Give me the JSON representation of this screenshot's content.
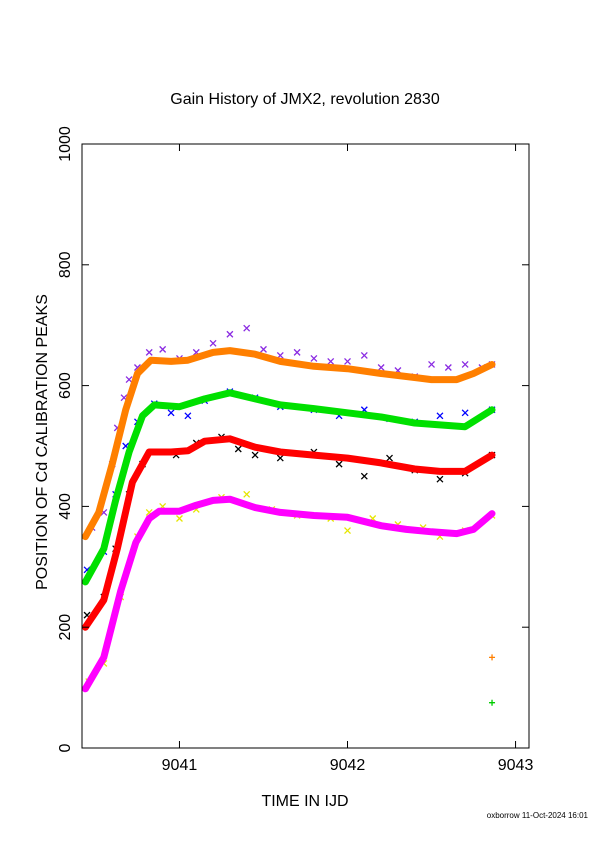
{
  "chart_data": {
    "type": "scatter",
    "title": "Gain History of JMX2, revolution 2830",
    "xlabel": "TIME IN IJD",
    "ylabel": "POSITION OF Cd CALIBRATION PEAKS",
    "xlim": [
      9040.42,
      9043.08
    ],
    "ylim": [
      0,
      1000
    ],
    "xticks": [
      9041,
      9042,
      9043
    ],
    "yticks": [
      0,
      200,
      400,
      600,
      800,
      1000
    ],
    "grid": false,
    "footer": "oxborrow 11-Oct-2024 16:01",
    "series": [
      {
        "color": "#8a2be2",
        "marker": "x",
        "points": [
          [
            9040.48,
            365
          ],
          [
            9040.55,
            390
          ],
          [
            9040.6,
            470
          ],
          [
            9040.63,
            530
          ],
          [
            9040.67,
            580
          ],
          [
            9040.7,
            610
          ],
          [
            9040.75,
            630
          ],
          [
            9040.82,
            655
          ],
          [
            9040.9,
            660
          ],
          [
            9041.0,
            645
          ],
          [
            9041.1,
            655
          ],
          [
            9041.2,
            670
          ],
          [
            9041.3,
            685
          ],
          [
            9041.4,
            695
          ],
          [
            9041.5,
            660
          ],
          [
            9041.6,
            650
          ],
          [
            9041.7,
            655
          ],
          [
            9041.8,
            645
          ],
          [
            9041.9,
            640
          ],
          [
            9042.0,
            640
          ],
          [
            9042.1,
            650
          ],
          [
            9042.2,
            630
          ],
          [
            9042.3,
            625
          ],
          [
            9042.4,
            615
          ],
          [
            9042.5,
            635
          ],
          [
            9042.6,
            630
          ],
          [
            9042.7,
            635
          ],
          [
            9042.8,
            630
          ],
          [
            9042.86,
            635
          ]
        ]
      },
      {
        "color": "#ff7f00",
        "marker": "line",
        "points": [
          [
            9040.44,
            350
          ],
          [
            9040.52,
            390
          ],
          [
            9040.6,
            470
          ],
          [
            9040.68,
            560
          ],
          [
            9040.75,
            620
          ],
          [
            9040.83,
            642
          ],
          [
            9040.95,
            640
          ],
          [
            9041.05,
            642
          ],
          [
            9041.2,
            655
          ],
          [
            9041.3,
            658
          ],
          [
            9041.45,
            652
          ],
          [
            9041.6,
            640
          ],
          [
            9041.8,
            632
          ],
          [
            9042.0,
            628
          ],
          [
            9042.2,
            620
          ],
          [
            9042.35,
            615
          ],
          [
            9042.5,
            610
          ],
          [
            9042.65,
            610
          ],
          [
            9042.75,
            620
          ],
          [
            9042.86,
            635
          ]
        ]
      },
      {
        "color": "#0000ff",
        "marker": "x",
        "points": [
          [
            9040.45,
            295
          ],
          [
            9040.55,
            325
          ],
          [
            9040.62,
            420
          ],
          [
            9040.68,
            500
          ],
          [
            9040.75,
            540
          ],
          [
            9040.85,
            570
          ],
          [
            9040.95,
            555
          ],
          [
            9041.05,
            550
          ],
          [
            9041.15,
            575
          ],
          [
            9041.3,
            590
          ],
          [
            9041.45,
            580
          ],
          [
            9041.6,
            565
          ],
          [
            9041.8,
            560
          ],
          [
            9041.95,
            550
          ],
          [
            9042.1,
            560
          ],
          [
            9042.25,
            545
          ],
          [
            9042.4,
            540
          ],
          [
            9042.55,
            550
          ],
          [
            9042.7,
            555
          ],
          [
            9042.86,
            560
          ]
        ]
      },
      {
        "color": "#00e000",
        "marker": "line",
        "points": [
          [
            9040.44,
            275
          ],
          [
            9040.55,
            330
          ],
          [
            9040.62,
            410
          ],
          [
            9040.7,
            490
          ],
          [
            9040.78,
            550
          ],
          [
            9040.85,
            568
          ],
          [
            9041.0,
            565
          ],
          [
            9041.15,
            578
          ],
          [
            9041.3,
            588
          ],
          [
            9041.45,
            578
          ],
          [
            9041.6,
            568
          ],
          [
            9041.8,
            562
          ],
          [
            9042.0,
            555
          ],
          [
            9042.2,
            548
          ],
          [
            9042.4,
            538
          ],
          [
            9042.55,
            535
          ],
          [
            9042.7,
            532
          ],
          [
            9042.86,
            560
          ]
        ]
      },
      {
        "color": "#000000",
        "marker": "x",
        "points": [
          [
            9040.45,
            220
          ],
          [
            9040.55,
            250
          ],
          [
            9040.62,
            330
          ],
          [
            9040.7,
            420
          ],
          [
            9040.78,
            470
          ],
          [
            9040.88,
            490
          ],
          [
            9040.98,
            485
          ],
          [
            9041.1,
            505
          ],
          [
            9041.25,
            515
          ],
          [
            9041.35,
            495
          ],
          [
            9041.45,
            485
          ],
          [
            9041.6,
            480
          ],
          [
            9041.8,
            490
          ],
          [
            9041.95,
            470
          ],
          [
            9042.1,
            450
          ],
          [
            9042.25,
            480
          ],
          [
            9042.4,
            460
          ],
          [
            9042.55,
            445
          ],
          [
            9042.7,
            455
          ],
          [
            9042.86,
            485
          ]
        ]
      },
      {
        "color": "#ff0000",
        "marker": "line",
        "points": [
          [
            9040.44,
            200
          ],
          [
            9040.55,
            245
          ],
          [
            9040.63,
            330
          ],
          [
            9040.72,
            440
          ],
          [
            9040.82,
            490
          ],
          [
            9040.95,
            490
          ],
          [
            9041.05,
            492
          ],
          [
            9041.15,
            508
          ],
          [
            9041.3,
            512
          ],
          [
            9041.45,
            498
          ],
          [
            9041.6,
            490
          ],
          [
            9041.8,
            485
          ],
          [
            9042.0,
            480
          ],
          [
            9042.2,
            472
          ],
          [
            9042.4,
            462
          ],
          [
            9042.55,
            458
          ],
          [
            9042.7,
            458
          ],
          [
            9042.86,
            485
          ]
        ]
      },
      {
        "color": "#e6e600",
        "marker": "x",
        "points": [
          [
            9040.46,
            110
          ],
          [
            9040.55,
            140
          ],
          [
            9040.65,
            250
          ],
          [
            9040.75,
            350
          ],
          [
            9040.82,
            390
          ],
          [
            9040.9,
            400
          ],
          [
            9041.0,
            380
          ],
          [
            9041.1,
            395
          ],
          [
            9041.25,
            415
          ],
          [
            9041.4,
            420
          ],
          [
            9041.55,
            395
          ],
          [
            9041.7,
            385
          ],
          [
            9041.9,
            380
          ],
          [
            9042.0,
            360
          ],
          [
            9042.15,
            380
          ],
          [
            9042.3,
            370
          ],
          [
            9042.45,
            365
          ],
          [
            9042.55,
            350
          ],
          [
            9042.7,
            360
          ],
          [
            9042.86,
            385
          ]
        ]
      },
      {
        "color": "#ff00ff",
        "marker": "line",
        "points": [
          [
            9040.44,
            98
          ],
          [
            9040.55,
            150
          ],
          [
            9040.65,
            260
          ],
          [
            9040.74,
            340
          ],
          [
            9040.82,
            380
          ],
          [
            9040.88,
            392
          ],
          [
            9041.0,
            392
          ],
          [
            9041.1,
            402
          ],
          [
            9041.2,
            410
          ],
          [
            9041.3,
            412
          ],
          [
            9041.45,
            398
          ],
          [
            9041.6,
            390
          ],
          [
            9041.8,
            385
          ],
          [
            9042.0,
            382
          ],
          [
            9042.2,
            368
          ],
          [
            9042.35,
            362
          ],
          [
            9042.5,
            358
          ],
          [
            9042.65,
            355
          ],
          [
            9042.75,
            362
          ],
          [
            9042.86,
            388
          ]
        ]
      },
      {
        "color": "#ff7f00",
        "marker": "+",
        "points": [
          [
            9042.86,
            150
          ]
        ]
      },
      {
        "color": "#00cc00",
        "marker": "+",
        "points": [
          [
            9042.86,
            75
          ]
        ]
      }
    ]
  }
}
